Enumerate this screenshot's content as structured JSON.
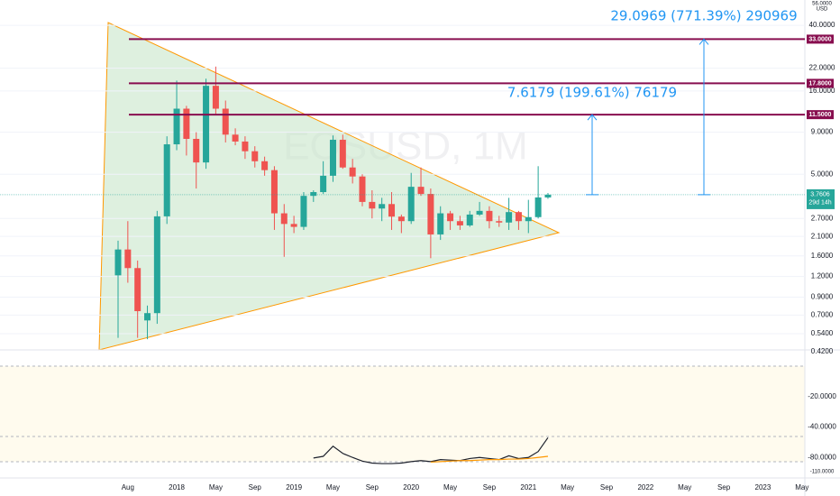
{
  "chart_data": {
    "type": "candlestick",
    "watermark": "EOSUSD, 1M",
    "currency": "USD",
    "log_scale": true,
    "grid": true,
    "up_color": "#26a69a",
    "down_color": "#ef5350",
    "ylim": [
      0.42,
      57
    ],
    "yticks": [
      {
        "value": 56,
        "label": "56.0000"
      },
      {
        "value": 40,
        "label": "40.0000"
      },
      {
        "value": 22,
        "label": "22.0000"
      },
      {
        "value": 16,
        "label": "16.0000"
      },
      {
        "value": 9,
        "label": "9.0000"
      },
      {
        "value": 5,
        "label": "5.0000"
      },
      {
        "value": 2.7,
        "label": "2.7000"
      },
      {
        "value": 2.1,
        "label": "2.1000"
      },
      {
        "value": 1.6,
        "label": "1.6000"
      },
      {
        "value": 1.2,
        "label": "1.2000"
      },
      {
        "value": 0.9,
        "label": "0.9000"
      },
      {
        "value": 0.7,
        "label": "0.7000"
      },
      {
        "value": 0.54,
        "label": "0.5400"
      },
      {
        "value": 0.42,
        "label": "0.4200"
      }
    ],
    "xticks": [
      "Aug",
      "2018",
      "May",
      "Sep",
      "2019",
      "May",
      "Sep",
      "2020",
      "May",
      "Sep",
      "2021",
      "May",
      "Sep",
      "2022",
      "May",
      "Sep",
      "2023",
      "May"
    ],
    "ohlc": [
      [
        1.22,
        1.98,
        0.51,
        1.75
      ],
      [
        1.75,
        2.6,
        1.1,
        1.35
      ],
      [
        1.35,
        1.5,
        0.51,
        0.74
      ],
      [
        0.65,
        0.8,
        0.5,
        0.72
      ],
      [
        0.72,
        3.0,
        0.62,
        2.78
      ],
      [
        2.78,
        8.5,
        2.5,
        7.6
      ],
      [
        7.6,
        18.5,
        7.0,
        12.5
      ],
      [
        12.5,
        13.0,
        6.5,
        8.2
      ],
      [
        8.2,
        9.0,
        4.1,
        5.9
      ],
      [
        5.9,
        19.0,
        5.4,
        17.2
      ],
      [
        17.2,
        22.5,
        11.5,
        12.5
      ],
      [
        12.5,
        14.0,
        7.8,
        8.7
      ],
      [
        8.7,
        9.5,
        7.5,
        7.9
      ],
      [
        7.9,
        8.5,
        6.2,
        6.9
      ],
      [
        6.9,
        7.4,
        5.5,
        6.0
      ],
      [
        6.0,
        6.4,
        4.9,
        5.3
      ],
      [
        5.3,
        5.6,
        2.3,
        2.9
      ],
      [
        2.9,
        3.3,
        1.58,
        2.5
      ],
      [
        2.5,
        2.8,
        2.2,
        2.4
      ],
      [
        2.4,
        3.9,
        2.3,
        3.7
      ],
      [
        3.7,
        4.0,
        3.4,
        3.9
      ],
      [
        3.9,
        6.0,
        3.8,
        4.9
      ],
      [
        4.9,
        8.6,
        4.5,
        8.1
      ],
      [
        8.1,
        8.7,
        5.4,
        5.5
      ],
      [
        5.5,
        6.2,
        4.4,
        4.85
      ],
      [
        4.85,
        5.0,
        3.2,
        3.4
      ],
      [
        3.4,
        4.0,
        2.7,
        3.1
      ],
      [
        3.1,
        3.6,
        2.6,
        3.3
      ],
      [
        3.3,
        3.9,
        2.3,
        2.77
      ],
      [
        2.77,
        2.85,
        2.2,
        2.6
      ],
      [
        2.6,
        5.1,
        2.5,
        4.2
      ],
      [
        4.2,
        5.5,
        3.7,
        3.8
      ],
      [
        3.8,
        4.1,
        1.55,
        2.16
      ],
      [
        2.16,
        3.2,
        2.0,
        2.9
      ],
      [
        2.9,
        3.0,
        2.3,
        2.6
      ],
      [
        2.6,
        2.8,
        2.3,
        2.45
      ],
      [
        2.45,
        3.0,
        2.4,
        2.85
      ],
      [
        2.85,
        3.4,
        2.8,
        3.0
      ],
      [
        3.0,
        3.2,
        2.35,
        2.6
      ],
      [
        2.6,
        2.8,
        2.4,
        2.55
      ],
      [
        2.55,
        3.6,
        2.3,
        2.95
      ],
      [
        2.95,
        3.0,
        2.3,
        2.6
      ],
      [
        2.6,
        3.5,
        2.2,
        2.75
      ],
      [
        2.75,
        5.6,
        2.7,
        3.62
      ],
      [
        3.62,
        3.85,
        3.55,
        3.7606
      ]
    ],
    "levels": [
      {
        "value": 33,
        "label": "33.0000"
      },
      {
        "value": 17.8,
        "label": "17.8000"
      },
      {
        "value": 11.5,
        "label": "11.5000"
      }
    ],
    "price_line": {
      "value": 3.7606,
      "label": "3.7606",
      "countdown": "29d 14h"
    },
    "measurements": [
      "7.6179 (199.61%) 76179",
      "29.0969 (771.39%) 290969"
    ],
    "indicator": {
      "log_scale": true,
      "ylim": [
        -8,
        -125
      ],
      "yticks": [
        {
          "value": -20,
          "label": "-20.0000"
        },
        {
          "value": -40,
          "label": "-40.0000"
        },
        {
          "value": -80,
          "label": "-80.0000"
        },
        {
          "value": -110,
          "label": "-110.0000"
        }
      ],
      "series": [
        {
          "color": "#1e222d",
          "values": [
            null,
            null,
            null,
            null,
            null,
            null,
            null,
            null,
            null,
            null,
            null,
            null,
            null,
            null,
            null,
            null,
            null,
            null,
            null,
            null,
            -81,
            -78,
            -62,
            -73,
            -80,
            -87,
            -91,
            -92,
            -92,
            -91,
            -88,
            -86,
            -88,
            -84,
            -85,
            -86,
            -82,
            -80,
            -82,
            -84,
            -77,
            -82,
            -80,
            -70,
            -51
          ]
        },
        {
          "color": "#ff9800",
          "values": [
            null,
            null,
            null,
            null,
            null,
            null,
            null,
            null,
            null,
            null,
            null,
            null,
            null,
            null,
            null,
            null,
            null,
            null,
            null,
            null,
            null,
            null,
            null,
            null,
            null,
            null,
            null,
            null,
            null,
            null,
            null,
            null,
            -89,
            -88,
            -87,
            -86,
            -86,
            -85,
            -84,
            -84,
            -83,
            -83,
            -82,
            -80,
            -78
          ]
        }
      ]
    }
  }
}
